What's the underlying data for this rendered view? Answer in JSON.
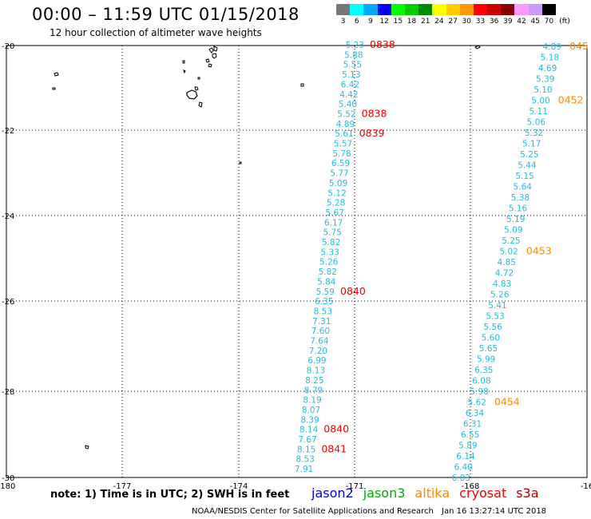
{
  "header": {
    "title": "00:00 – 11:59 UTC 01/15/2018",
    "subtitle": "12 hour collection of altimeter wave heights"
  },
  "legend": {
    "unit": "(ft)",
    "bins": [
      {
        "label": "3",
        "color": "#777777"
      },
      {
        "label": "6",
        "color": "#00ffff"
      },
      {
        "label": "9",
        "color": "#00aaff"
      },
      {
        "label": "12",
        "color": "#0000ff"
      },
      {
        "label": "15",
        "color": "#00ff00"
      },
      {
        "label": "18",
        "color": "#00cc00"
      },
      {
        "label": "21",
        "color": "#008800"
      },
      {
        "label": "24",
        "color": "#ffff00"
      },
      {
        "label": "27",
        "color": "#ffcc00"
      },
      {
        "label": "30",
        "color": "#ff9900"
      },
      {
        "label": "33",
        "color": "#ff0000"
      },
      {
        "label": "36",
        "color": "#cc0000"
      },
      {
        "label": "39",
        "color": "#880000"
      },
      {
        "label": "42",
        "color": "#ff99ff"
      },
      {
        "label": "45",
        "color": "#cc99ff"
      },
      {
        "label": "70",
        "color": "#000000"
      }
    ]
  },
  "map": {
    "lon_range": [
      -180,
      -165
    ],
    "lat_range": [
      -30,
      -20
    ],
    "lon_ticks": [
      "-180",
      "-177",
      "-174",
      "-171",
      "-168",
      "-16"
    ],
    "lat_ticks": [
      "-20",
      "-22",
      "-24",
      "-26",
      "-28",
      "-30"
    ],
    "value_color": "#22bbdd",
    "time_colors": {
      "cryosat": "#ee0000",
      "altika": "#ff8800"
    },
    "track_a": {
      "values": [
        "5.23",
        "5.88",
        "5.55",
        "5.13",
        "6.42",
        "4.42",
        "5.40",
        "5.52",
        "4.89",
        "5.61",
        "5.57",
        "5.78",
        "6.59",
        "5.77",
        "5.09",
        "5.12",
        "5.28",
        "5.67",
        "6.17",
        "5.75",
        "5.82",
        "5.33",
        "5.26",
        "5.82",
        "5.84",
        "5.59",
        "6.35",
        "8.53",
        "7.31",
        "7.60",
        "7.64",
        "7.20",
        "6.99",
        "8.13",
        "8.25",
        "8.79",
        "8.19",
        "8.07",
        "8.39",
        "8.14",
        "7.67",
        "8.15",
        "8.53",
        "7.91"
      ],
      "times": [
        {
          "text": "0838",
          "row": 0
        },
        {
          "text": "0838",
          "row": 7
        },
        {
          "text": "0839",
          "row": 9
        },
        {
          "text": "0840",
          "row": 25
        },
        {
          "text": "0840",
          "row": 39
        },
        {
          "text": "0841",
          "row": 41
        }
      ]
    },
    "track_b": {
      "values": [
        "4.89",
        "5.18",
        "4.69",
        "5.39",
        "5.10",
        "5.00",
        "5.11",
        "5.06",
        "5.32",
        "5.17",
        "5.25",
        "5.44",
        "5.15",
        "5.64",
        "5.38",
        "5.16",
        "5.19",
        "5.09",
        "5.25",
        "5.02",
        "4.85",
        "4.72",
        "4.83",
        "5.26",
        "5.41",
        "5.53",
        "5.56",
        "5.60",
        "5.65",
        "5.99",
        "6.35",
        "6.08",
        "5.98",
        "5.62",
        "6.34",
        "6.31",
        "6.55",
        "5.89",
        "6.14",
        "6.40",
        "6.03"
      ],
      "times": [
        {
          "text": "045",
          "row": 0
        },
        {
          "text": "0452",
          "row": 5
        },
        {
          "text": "0453",
          "row": 19
        },
        {
          "text": "0454",
          "row": 33
        }
      ]
    }
  },
  "footer": {
    "note": "note: 1) Time is in UTC; 2) SWH is in feet",
    "missions": [
      {
        "name": "jason2",
        "color": "#0000dd"
      },
      {
        "name": "jason3",
        "color": "#00aa00"
      },
      {
        "name": "altika",
        "color": "#ff8800"
      },
      {
        "name": "cryosat",
        "color": "#ee0000"
      },
      {
        "name": "s3a",
        "color": "#aa0000"
      }
    ],
    "credit": "NOAA/NESDIS Center for Satellite Applications and Research",
    "timestamp": "Jan 16 13:27:14 UTC 2018"
  }
}
